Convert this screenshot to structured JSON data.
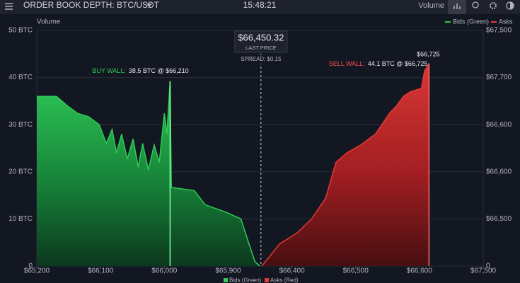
{
  "chart_data": {
    "type": "depth",
    "title": "ORDER BOOK DEPTH: BTC/USDT",
    "clock": "15:48:21",
    "toolbar_label": "Volume",
    "axis_label": "Volume",
    "top_legend": [
      "Bids (Green)",
      "Asks"
    ],
    "price_box": {
      "price": "$66,450.32",
      "caption": "LAST PRICE",
      "spread": "SPREAD: $0.15"
    },
    "annotations": {
      "buy_wall": {
        "label": "BUY WALL:",
        "text": "38.5 BTC @ $66,210"
      },
      "sell_wall": {
        "label": "SELL WALL:",
        "text": "44.1 BTC @ $66,725"
      },
      "peak": "$66,725"
    },
    "xlim": [
      0,
      7
    ],
    "xticks": [
      {
        "value": 0,
        "label": "$65,200"
      },
      {
        "value": 1,
        "label": "$66,100"
      },
      {
        "value": 2,
        "label": "$66,000"
      },
      {
        "value": 3,
        "label": "$65,900"
      },
      {
        "value": 4,
        "label": "$66,400"
      },
      {
        "value": 5,
        "label": "$66,500"
      },
      {
        "value": 6,
        "label": "$66,600"
      },
      {
        "value": 7,
        "label": "$67,500"
      }
    ],
    "ylim": [
      0,
      50
    ],
    "yticks": [
      0,
      {
        "value": 10,
        "label": "10 BTC"
      },
      {
        "value": 20,
        "label": "20 BTC"
      },
      {
        "value": 30,
        "label": "30 BTC"
      },
      {
        "value": 40,
        "label": "40 BTC"
      },
      {
        "value": 50,
        "label": "50 BTC"
      }
    ],
    "y2lim": [
      0,
      50
    ],
    "y2ticks": [
      0,
      {
        "value": 10,
        "label": "$66,500"
      },
      {
        "value": 20,
        "label": "$66,600"
      },
      {
        "value": 30,
        "label": "$66,600"
      },
      {
        "value": 40,
        "label": "$67,700"
      },
      {
        "value": 50,
        "label": "$67,500"
      }
    ],
    "series": [
      {
        "name": "Bids (Green)",
        "color": "#2ecc55",
        "x": [
          0,
          0.31,
          0.48,
          0.64,
          0.81,
          0.98,
          1.09,
          1.18,
          1.25,
          1.33,
          1.42,
          1.51,
          1.59,
          1.66,
          1.75,
          1.84,
          1.92,
          2.0,
          2.04,
          2.09,
          2.11,
          2.47,
          2.64,
          2.97,
          3.2,
          3.31,
          3.42,
          3.5
        ],
        "values": [
          36,
          36,
          34,
          32.4,
          31.7,
          30,
          26,
          29,
          24,
          28,
          22.7,
          27,
          21,
          26,
          20.4,
          25.7,
          22,
          32.4,
          28,
          39.2,
          16.7,
          16,
          13,
          11.4,
          10,
          5.4,
          0.9,
          0
        ]
      },
      {
        "name": "Asks (Red)",
        "color": "#e53935",
        "x": [
          3.53,
          3.81,
          4.08,
          4.31,
          4.53,
          4.69,
          4.86,
          5.08,
          5.31,
          5.53,
          5.64,
          5.75,
          5.86,
          6.03,
          6.08,
          6.15
        ],
        "values": [
          0,
          4.7,
          7,
          10,
          14.4,
          22,
          24,
          25.7,
          28,
          32.4,
          34,
          36,
          37,
          37.7,
          41.4,
          43
        ]
      }
    ]
  }
}
